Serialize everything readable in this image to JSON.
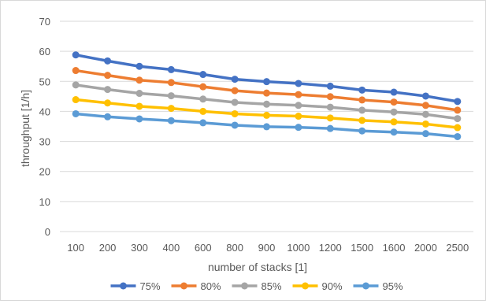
{
  "chart_data": {
    "type": "line",
    "title": "",
    "xlabel": "number of stacks [1]",
    "ylabel": "throughput [1/h]",
    "ylim": [
      0,
      70
    ],
    "yticks": [
      0,
      10,
      20,
      30,
      40,
      50,
      60,
      70
    ],
    "categories": [
      "100",
      "200",
      "300",
      "400",
      "600",
      "800",
      "900",
      "1000",
      "1200",
      "1500",
      "1600",
      "2000",
      "2500"
    ],
    "grid": true,
    "legend_position": "bottom",
    "series": [
      {
        "name": "75%",
        "color": "#4472C4",
        "values": [
          58.8,
          56.8,
          55.0,
          53.9,
          52.3,
          50.7,
          49.9,
          49.3,
          48.4,
          47.1,
          46.4,
          45.1,
          43.3
        ]
      },
      {
        "name": "80%",
        "color": "#ED7D31",
        "values": [
          53.6,
          52.0,
          50.4,
          49.6,
          48.2,
          46.9,
          46.1,
          45.6,
          44.9,
          43.8,
          43.1,
          42.0,
          40.4
        ]
      },
      {
        "name": "85%",
        "color": "#A5A5A5",
        "values": [
          48.8,
          47.3,
          46.0,
          45.2,
          44.1,
          43.0,
          42.4,
          42.0,
          41.4,
          40.4,
          39.8,
          39.0,
          37.6
        ]
      },
      {
        "name": "90%",
        "color": "#FFC000",
        "values": [
          43.9,
          42.8,
          41.7,
          41.0,
          40.0,
          39.2,
          38.7,
          38.4,
          37.8,
          37.0,
          36.5,
          35.8,
          34.6
        ]
      },
      {
        "name": "95%",
        "color": "#5B9BD5",
        "values": [
          39.2,
          38.2,
          37.5,
          36.9,
          36.2,
          35.4,
          34.9,
          34.7,
          34.3,
          33.5,
          33.1,
          32.6,
          31.6
        ]
      }
    ]
  }
}
